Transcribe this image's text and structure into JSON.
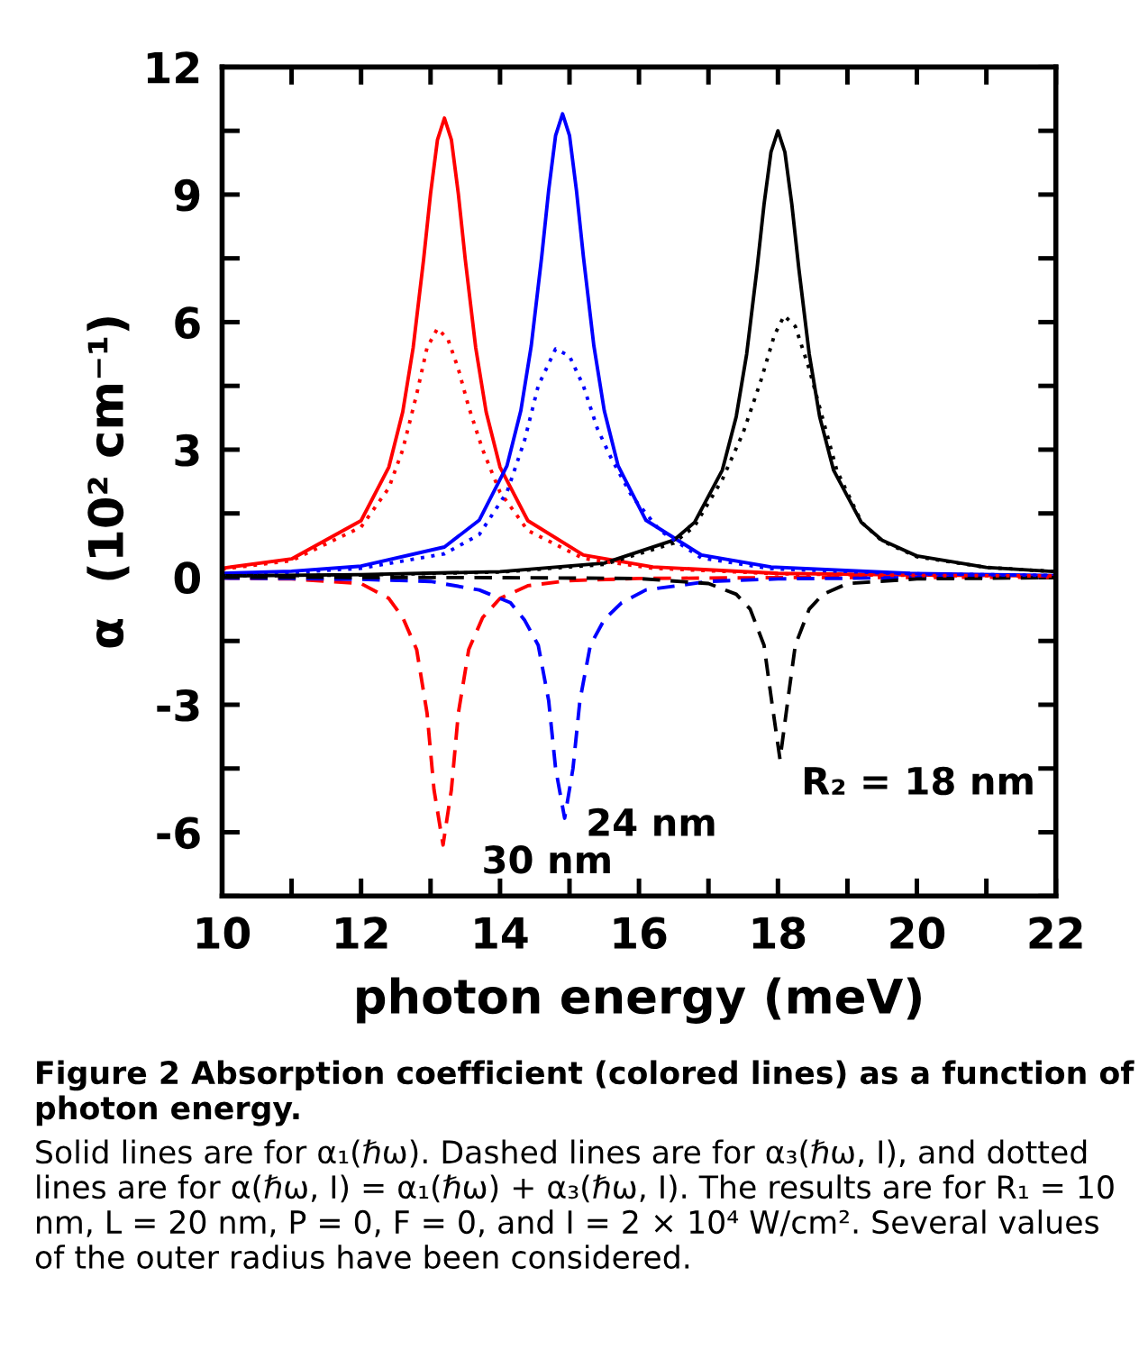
{
  "chart_data": {
    "type": "line",
    "xlabel": "photon energy (meV)",
    "ylabel": "α  (10² cm⁻¹)",
    "xlim": [
      10,
      22
    ],
    "ylim": [
      -7.5,
      12
    ],
    "xticks": [
      10,
      {
        "value": 11,
        "label": null
      },
      12,
      {
        "value": 13,
        "label": null
      },
      14,
      {
        "value": 15,
        "label": null
      },
      16,
      {
        "value": 17,
        "label": null
      },
      18,
      {
        "value": 19,
        "label": null
      },
      20,
      {
        "value": 21,
        "label": null
      },
      22
    ],
    "yticks": [
      {
        "value": -7.5,
        "label": null
      },
      -6,
      {
        "value": -4.5,
        "label": null
      },
      -3,
      {
        "value": -1.5,
        "label": null
      },
      0,
      {
        "value": 1.5,
        "label": null
      },
      3,
      {
        "value": 4.5,
        "label": null
      },
      6,
      {
        "value": 7.5,
        "label": null
      },
      9,
      {
        "value": 10.5,
        "label": null
      },
      12
    ],
    "grid": false,
    "legend": false,
    "marker": "none",
    "series": [
      {
        "color": "#ff0000",
        "line_style": "solid",
        "x": [
          10,
          11,
          12,
          12.4,
          12.6,
          12.75,
          12.9,
          13.0,
          13.1,
          13.2,
          13.3,
          13.4,
          13.5,
          13.65,
          13.8,
          14.0,
          14.4,
          15.2,
          16.2,
          18,
          20,
          22
        ],
        "values": [
          0.21,
          0.43,
          1.33,
          2.59,
          3.89,
          5.4,
          7.47,
          9.02,
          10.29,
          10.8,
          10.29,
          9.02,
          7.47,
          5.4,
          3.89,
          2.59,
          1.33,
          0.52,
          0.24,
          0.09,
          0.05,
          0.03
        ]
      },
      {
        "color": "#0000ff",
        "line_style": "solid",
        "x": [
          10,
          11,
          12,
          13.2,
          13.7,
          14.1,
          14.3,
          14.45,
          14.6,
          14.7,
          14.8,
          14.9,
          15.0,
          15.1,
          15.2,
          15.35,
          15.5,
          15.7,
          16.1,
          16.9,
          17.9,
          19.9,
          22
        ],
        "values": [
          0.09,
          0.14,
          0.26,
          0.71,
          1.34,
          2.62,
          3.92,
          5.45,
          7.54,
          9.1,
          10.39,
          10.9,
          10.39,
          9.1,
          7.54,
          5.45,
          3.92,
          2.62,
          1.34,
          0.52,
          0.24,
          0.09,
          0.04
        ]
      },
      {
        "color": "#000000",
        "line_style": "solid",
        "x": [
          10,
          12,
          14,
          15.5,
          16.5,
          16.8,
          17.2,
          17.4,
          17.55,
          17.7,
          17.8,
          17.9,
          18.0,
          18.1,
          18.2,
          18.3,
          18.45,
          18.6,
          18.8,
          19.2,
          19.5,
          20,
          21,
          22
        ],
        "values": [
          0.03,
          0.06,
          0.13,
          0.33,
          0.87,
          1.29,
          2.52,
          3.78,
          5.25,
          7.27,
          8.77,
          10.0,
          10.5,
          10.0,
          8.77,
          7.27,
          5.25,
          3.78,
          2.52,
          1.29,
          0.87,
          0.5,
          0.23,
          0.13
        ]
      },
      {
        "color": "#ff0000",
        "line_style": "dashed",
        "x": [
          10,
          11,
          12,
          12.4,
          12.6,
          12.8,
          12.95,
          13.05,
          13.18,
          13.3,
          13.4,
          13.55,
          13.75,
          14.0,
          14.4,
          15,
          16,
          18,
          22
        ],
        "values": [
          -0.02,
          -0.04,
          -0.15,
          -0.5,
          -0.95,
          -1.7,
          -3.2,
          -5.0,
          -6.3,
          -5.0,
          -3.2,
          -1.7,
          -0.95,
          -0.5,
          -0.2,
          -0.08,
          -0.03,
          -0.01,
          0
        ]
      },
      {
        "color": "#0000ff",
        "line_style": "dashed",
        "x": [
          10,
          11,
          12,
          13,
          13.7,
          14.15,
          14.35,
          14.55,
          14.7,
          14.8,
          14.93,
          15.05,
          15.15,
          15.3,
          15.5,
          15.75,
          16.1,
          17,
          18,
          20,
          22
        ],
        "values": [
          -0.02,
          -0.03,
          -0.05,
          -0.1,
          -0.3,
          -0.6,
          -1.0,
          -1.6,
          -2.9,
          -4.5,
          -5.67,
          -4.5,
          -2.9,
          -1.6,
          -1.0,
          -0.6,
          -0.3,
          -0.1,
          -0.04,
          -0.01,
          0
        ]
      },
      {
        "color": "#000000",
        "line_style": "dashed",
        "x": [
          10,
          14,
          16,
          17,
          17.4,
          17.6,
          17.8,
          17.9,
          18.03,
          18.15,
          18.25,
          18.45,
          18.65,
          19.0,
          20,
          22
        ],
        "values": [
          0,
          -0.01,
          -0.03,
          -0.15,
          -0.4,
          -0.75,
          -1.6,
          -2.8,
          -4.29,
          -2.8,
          -1.6,
          -0.75,
          -0.4,
          -0.15,
          -0.04,
          -0.01
        ]
      },
      {
        "color": "#ff0000",
        "line_style": "dotted",
        "x": [
          10,
          11,
          12,
          12.4,
          12.6,
          12.8,
          12.95,
          13.1,
          13.25,
          13.4,
          13.55,
          13.75,
          14.0,
          14.4,
          15.2,
          16.2,
          18,
          20,
          22
        ],
        "values": [
          0.19,
          0.39,
          1.18,
          2.1,
          3.0,
          4.3,
          5.4,
          5.85,
          5.6,
          4.9,
          4.0,
          3.0,
          2.0,
          1.1,
          0.44,
          0.21,
          0.08,
          0.04,
          0.03
        ]
      },
      {
        "color": "#0000ff",
        "line_style": "dotted",
        "x": [
          10,
          11,
          12,
          13.2,
          13.7,
          14.1,
          14.35,
          14.55,
          14.8,
          15.0,
          15.2,
          15.4,
          15.6,
          15.9,
          16.3,
          16.9,
          17.9,
          19.9,
          22
        ],
        "values": [
          0.07,
          0.11,
          0.21,
          0.55,
          1.0,
          2.0,
          3.2,
          4.5,
          5.37,
          5.2,
          4.5,
          3.5,
          2.8,
          1.9,
          1.1,
          0.45,
          0.2,
          0.08,
          0.04
        ]
      },
      {
        "color": "#000000",
        "line_style": "dotted",
        "x": [
          10,
          12,
          14,
          15.5,
          16.5,
          16.8,
          17.2,
          17.5,
          17.75,
          17.95,
          18.09,
          18.25,
          18.45,
          18.65,
          18.85,
          19.2,
          19.5,
          20,
          21,
          22
        ],
        "values": [
          0.03,
          0.05,
          0.12,
          0.3,
          0.8,
          1.2,
          2.3,
          3.4,
          4.6,
          5.7,
          6.15,
          5.9,
          4.9,
          3.7,
          2.5,
          1.3,
          0.85,
          0.48,
          0.23,
          0.13
        ]
      }
    ],
    "annotations": [
      "30 nm",
      "24 nm",
      "R₂ = 18 nm",
      "Figure 2 Absorption coefficient (colored lines) as a function of photon energy.",
      "Solid lines are for α₁(ℏω). Dashed lines are for α₃(ℏω, I), and dotted lines are for α(ℏω, I) = α₁(ℏω) + α₃(ℏω, I). The results are for R₁ = 10 nm, L = 20 nm, P = 0, F = 0, and I = 2 × 10⁴ W/cm². Several values of the outer radius have been considered."
    ]
  }
}
